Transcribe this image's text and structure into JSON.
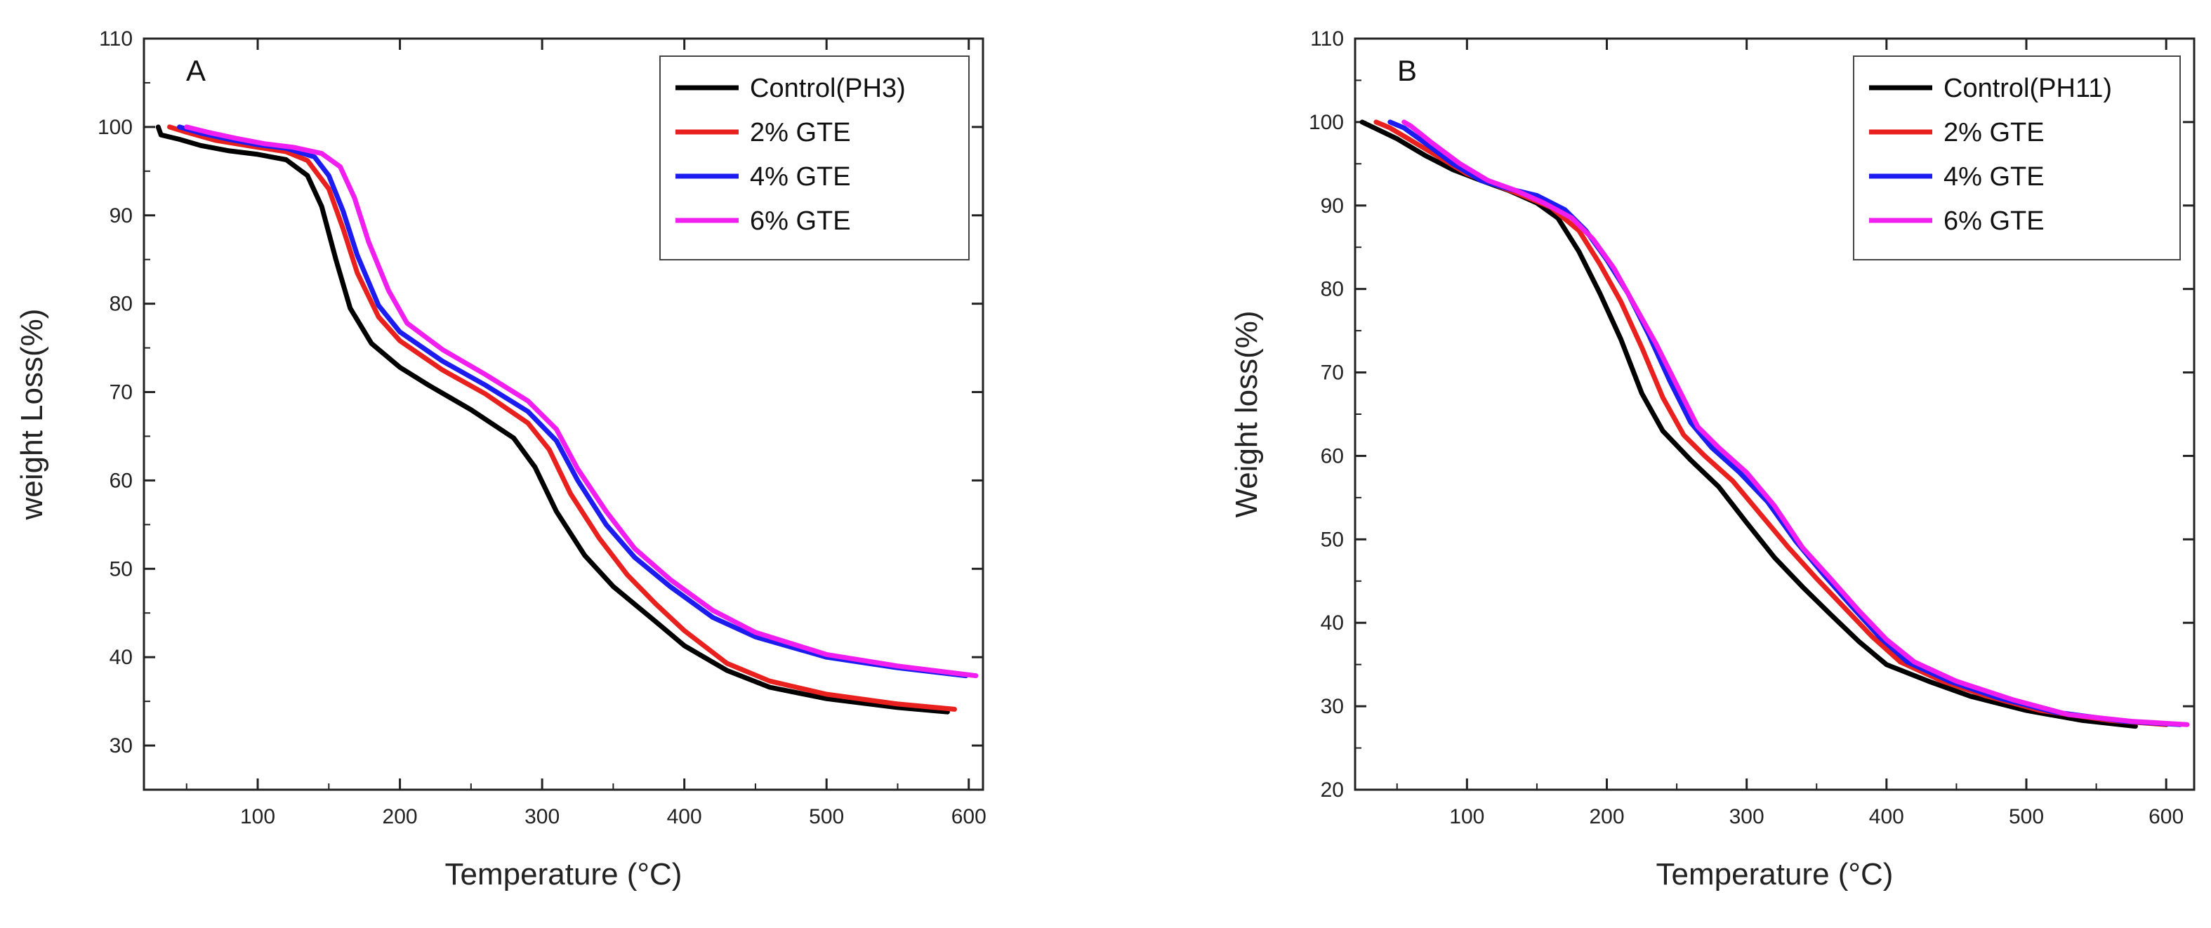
{
  "chart_data": [
    {
      "type": "line",
      "panel_label": "A",
      "xlabel": "Temperature (°C)",
      "ylabel": "weight Loss(%)",
      "xlim": [
        20,
        610
      ],
      "ylim": [
        25,
        110
      ],
      "xticks": [
        100,
        200,
        300,
        400,
        500,
        600
      ],
      "yticks": [
        30,
        40,
        50,
        60,
        70,
        80,
        90,
        100,
        110
      ],
      "grid": false,
      "legend_position": "top-right",
      "series": [
        {
          "name": "Control(PH3)",
          "color": "#000000",
          "points": [
            [
              30,
              100
            ],
            [
              32,
              99.1
            ],
            [
              45,
              98.6
            ],
            [
              60,
              97.9
            ],
            [
              80,
              97.3
            ],
            [
              100,
              96.9
            ],
            [
              120,
              96.3
            ],
            [
              135,
              94.5
            ],
            [
              145,
              91.0
            ],
            [
              155,
              85.0
            ],
            [
              165,
              79.5
            ],
            [
              180,
              75.5
            ],
            [
              200,
              72.8
            ],
            [
              220,
              70.8
            ],
            [
              250,
              68.0
            ],
            [
              280,
              64.8
            ],
            [
              295,
              61.5
            ],
            [
              310,
              56.5
            ],
            [
              330,
              51.5
            ],
            [
              350,
              48.0
            ],
            [
              380,
              44.0
            ],
            [
              400,
              41.3
            ],
            [
              430,
              38.5
            ],
            [
              460,
              36.6
            ],
            [
              500,
              35.3
            ],
            [
              550,
              34.3
            ],
            [
              585,
              33.8
            ]
          ]
        },
        {
          "name": "2% GTE",
          "color": "#e8211f",
          "points": [
            [
              38,
              100
            ],
            [
              50,
              99.4
            ],
            [
              70,
              98.5
            ],
            [
              100,
              97.7
            ],
            [
              120,
              97.2
            ],
            [
              135,
              96.2
            ],
            [
              150,
              93.0
            ],
            [
              160,
              88.5
            ],
            [
              170,
              83.5
            ],
            [
              185,
              78.5
            ],
            [
              200,
              75.8
            ],
            [
              230,
              72.5
            ],
            [
              260,
              69.8
            ],
            [
              290,
              66.5
            ],
            [
              305,
              63.5
            ],
            [
              320,
              58.5
            ],
            [
              340,
              53.5
            ],
            [
              360,
              49.3
            ],
            [
              380,
              46.0
            ],
            [
              400,
              43.0
            ],
            [
              430,
              39.3
            ],
            [
              460,
              37.3
            ],
            [
              500,
              35.8
            ],
            [
              550,
              34.7
            ],
            [
              590,
              34.1
            ]
          ]
        },
        {
          "name": "4% GTE",
          "color": "#1c1cf0",
          "points": [
            [
              45,
              100
            ],
            [
              60,
              99.3
            ],
            [
              80,
              98.6
            ],
            [
              100,
              98.0
            ],
            [
              120,
              97.6
            ],
            [
              140,
              96.6
            ],
            [
              150,
              94.5
            ],
            [
              160,
              90.5
            ],
            [
              170,
              85.5
            ],
            [
              185,
              79.8
            ],
            [
              200,
              76.8
            ],
            [
              230,
              73.5
            ],
            [
              260,
              70.8
            ],
            [
              290,
              67.8
            ],
            [
              310,
              64.5
            ],
            [
              325,
              60.0
            ],
            [
              345,
              55.0
            ],
            [
              365,
              51.3
            ],
            [
              390,
              48.0
            ],
            [
              420,
              44.5
            ],
            [
              450,
              42.3
            ],
            [
              500,
              40.0
            ],
            [
              550,
              38.8
            ],
            [
              598,
              37.9
            ]
          ]
        },
        {
          "name": "6% GTE",
          "color": "#f01ff0",
          "points": [
            [
              50,
              100
            ],
            [
              65,
              99.4
            ],
            [
              85,
              98.7
            ],
            [
              105,
              98.1
            ],
            [
              125,
              97.7
            ],
            [
              145,
              97.0
            ],
            [
              158,
              95.5
            ],
            [
              168,
              92.0
            ],
            [
              178,
              87.0
            ],
            [
              192,
              81.5
            ],
            [
              205,
              77.8
            ],
            [
              230,
              74.8
            ],
            [
              260,
              72.0
            ],
            [
              290,
              69.0
            ],
            [
              310,
              65.8
            ],
            [
              325,
              61.3
            ],
            [
              345,
              56.5
            ],
            [
              365,
              52.3
            ],
            [
              390,
              48.8
            ],
            [
              420,
              45.3
            ],
            [
              450,
              42.8
            ],
            [
              500,
              40.3
            ],
            [
              550,
              39.0
            ],
            [
              605,
              37.9
            ]
          ]
        }
      ]
    },
    {
      "type": "line",
      "panel_label": "B",
      "xlabel": "Temperature (°C)",
      "ylabel": "Weight loss(%)",
      "xlim": [
        20,
        620
      ],
      "ylim": [
        20,
        110
      ],
      "xticks": [
        100,
        200,
        300,
        400,
        500,
        600
      ],
      "yticks": [
        20,
        30,
        40,
        50,
        60,
        70,
        80,
        90,
        100,
        110
      ],
      "grid": false,
      "legend_position": "top-right",
      "series": [
        {
          "name": "Control(PH11)",
          "color": "#000000",
          "points": [
            [
              25,
              100
            ],
            [
              35,
              99.2
            ],
            [
              50,
              98.0
            ],
            [
              70,
              96.0
            ],
            [
              90,
              94.3
            ],
            [
              110,
              93.0
            ],
            [
              130,
              91.8
            ],
            [
              150,
              90.3
            ],
            [
              165,
              88.5
            ],
            [
              180,
              84.5
            ],
            [
              195,
              79.5
            ],
            [
              210,
              74.0
            ],
            [
              225,
              67.5
            ],
            [
              240,
              63.0
            ],
            [
              260,
              59.5
            ],
            [
              280,
              56.3
            ],
            [
              300,
              52.0
            ],
            [
              320,
              47.8
            ],
            [
              340,
              44.3
            ],
            [
              360,
              41.0
            ],
            [
              380,
              37.8
            ],
            [
              400,
              35.0
            ],
            [
              430,
              33.0
            ],
            [
              460,
              31.2
            ],
            [
              500,
              29.5
            ],
            [
              540,
              28.3
            ],
            [
              578,
              27.6
            ]
          ]
        },
        {
          "name": "2% GTE",
          "color": "#e8211f",
          "points": [
            [
              35,
              100
            ],
            [
              45,
              99.3
            ],
            [
              60,
              97.8
            ],
            [
              80,
              95.8
            ],
            [
              100,
              93.8
            ],
            [
              120,
              92.5
            ],
            [
              140,
              91.2
            ],
            [
              160,
              89.8
            ],
            [
              180,
              87.0
            ],
            [
              195,
              83.0
            ],
            [
              210,
              78.5
            ],
            [
              225,
              73.0
            ],
            [
              240,
              67.0
            ],
            [
              255,
              62.5
            ],
            [
              270,
              60.0
            ],
            [
              290,
              57.0
            ],
            [
              310,
              53.0
            ],
            [
              330,
              49.0
            ],
            [
              350,
              45.3
            ],
            [
              370,
              41.8
            ],
            [
              390,
              38.3
            ],
            [
              410,
              35.3
            ],
            [
              440,
              33.0
            ],
            [
              470,
              31.3
            ],
            [
              510,
              29.5
            ],
            [
              560,
              28.3
            ],
            [
              600,
              27.8
            ]
          ]
        },
        {
          "name": "4% GTE",
          "color": "#1c1cf0",
          "points": [
            [
              45,
              100
            ],
            [
              55,
              99.3
            ],
            [
              70,
              97.5
            ],
            [
              90,
              95.0
            ],
            [
              110,
              93.0
            ],
            [
              130,
              92.0
            ],
            [
              150,
              91.2
            ],
            [
              170,
              89.5
            ],
            [
              185,
              87.0
            ],
            [
              200,
              83.5
            ],
            [
              215,
              79.5
            ],
            [
              230,
              74.5
            ],
            [
              245,
              69.0
            ],
            [
              260,
              64.0
            ],
            [
              275,
              61.0
            ],
            [
              295,
              58.0
            ],
            [
              315,
              54.5
            ],
            [
              335,
              49.8
            ],
            [
              355,
              45.8
            ],
            [
              375,
              42.0
            ],
            [
              395,
              38.3
            ],
            [
              415,
              35.3
            ],
            [
              445,
              33.0
            ],
            [
              480,
              31.0
            ],
            [
              520,
              29.3
            ],
            [
              570,
              28.2
            ],
            [
              610,
              27.8
            ]
          ]
        },
        {
          "name": "6% GTE",
          "color": "#f01ff0",
          "points": [
            [
              55,
              100
            ],
            [
              60,
              99.5
            ],
            [
              75,
              97.5
            ],
            [
              95,
              95.0
            ],
            [
              115,
              93.0
            ],
            [
              135,
              91.8
            ],
            [
              155,
              90.3
            ],
            [
              175,
              88.5
            ],
            [
              190,
              86.0
            ],
            [
              205,
              82.5
            ],
            [
              220,
              78.0
            ],
            [
              235,
              73.5
            ],
            [
              250,
              68.5
            ],
            [
              265,
              63.5
            ],
            [
              280,
              61.0
            ],
            [
              300,
              58.0
            ],
            [
              320,
              54.0
            ],
            [
              340,
              49.0
            ],
            [
              360,
              45.3
            ],
            [
              380,
              41.5
            ],
            [
              400,
              38.0
            ],
            [
              420,
              35.3
            ],
            [
              450,
              33.0
            ],
            [
              490,
              30.8
            ],
            [
              530,
              29.0
            ],
            [
              575,
              28.2
            ],
            [
              615,
              27.8
            ]
          ]
        }
      ]
    }
  ]
}
